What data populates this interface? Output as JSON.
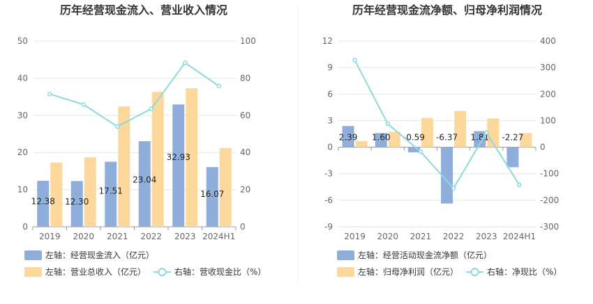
{
  "chart_data": [
    {
      "type": "bar+line",
      "title": "历年经营现金流入、营业收入情况",
      "categories": [
        "2019",
        "2020",
        "2021",
        "2022",
        "2023",
        "2024H1"
      ],
      "left_axis": {
        "ylim": [
          0,
          50
        ],
        "ticks": [
          "0",
          "10",
          "20",
          "30",
          "40",
          "50"
        ]
      },
      "right_axis": {
        "ylim": [
          0,
          100
        ],
        "ticks": [
          "0",
          "20",
          "40",
          "60",
          "80",
          "100"
        ]
      },
      "series": [
        {
          "name": "左轴：经营现金流入（亿元）",
          "kind": "bar",
          "axis": "left",
          "color": "#8FAEDC",
          "values": [
            12.38,
            12.3,
            17.51,
            23.04,
            32.93,
            16.07
          ],
          "labels": [
            "12.38",
            "12.30",
            "17.51",
            "23.04",
            "32.93",
            "16.07"
          ]
        },
        {
          "name": "左轴：营业总收入（亿元）",
          "kind": "bar",
          "axis": "left",
          "color": "#FDD89C",
          "values": [
            17.3,
            18.7,
            32.4,
            36.3,
            37.3,
            21.2
          ]
        },
        {
          "name": "右轴：营收现金比（%）",
          "kind": "line",
          "axis": "right",
          "color": "#8DD9DC",
          "values": [
            71.5,
            65.8,
            54.0,
            63.5,
            88.3,
            75.8
          ]
        }
      ]
    },
    {
      "type": "bar+line",
      "title": "历年经营现金流净额、归母净利润情况",
      "categories": [
        "2019",
        "2020",
        "2021",
        "2022",
        "2023",
        "2024H1"
      ],
      "left_axis": {
        "ylim": [
          -9,
          12
        ],
        "ticks": [
          "-9",
          "-6",
          "-3",
          "0",
          "3",
          "6",
          "9",
          "12"
        ]
      },
      "right_axis": {
        "ylim": [
          -300,
          400
        ],
        "ticks": [
          "-300",
          "-200",
          "-100",
          "0",
          "100",
          "200",
          "300",
          "400"
        ]
      },
      "series": [
        {
          "name": "左轴：经营活动现金流净额（亿元）",
          "kind": "bar",
          "axis": "left",
          "color": "#8FAEDC",
          "values": [
            2.39,
            1.6,
            -0.59,
            -6.37,
            1.81,
            -2.27
          ],
          "labels": [
            "2.39",
            "1.60",
            "-0.59",
            "-6.37",
            "1.81",
            "-2.27"
          ]
        },
        {
          "name": "左轴：归母净利润（亿元）",
          "kind": "bar",
          "axis": "left",
          "color": "#FDD89C",
          "values": [
            0.7,
            1.75,
            3.3,
            4.1,
            3.25,
            1.6
          ]
        },
        {
          "name": "右轴：净现比（%）",
          "kind": "line",
          "axis": "right",
          "color": "#8DD9DC",
          "values": [
            328,
            88,
            -17,
            -155,
            55,
            -142
          ]
        }
      ]
    }
  ]
}
